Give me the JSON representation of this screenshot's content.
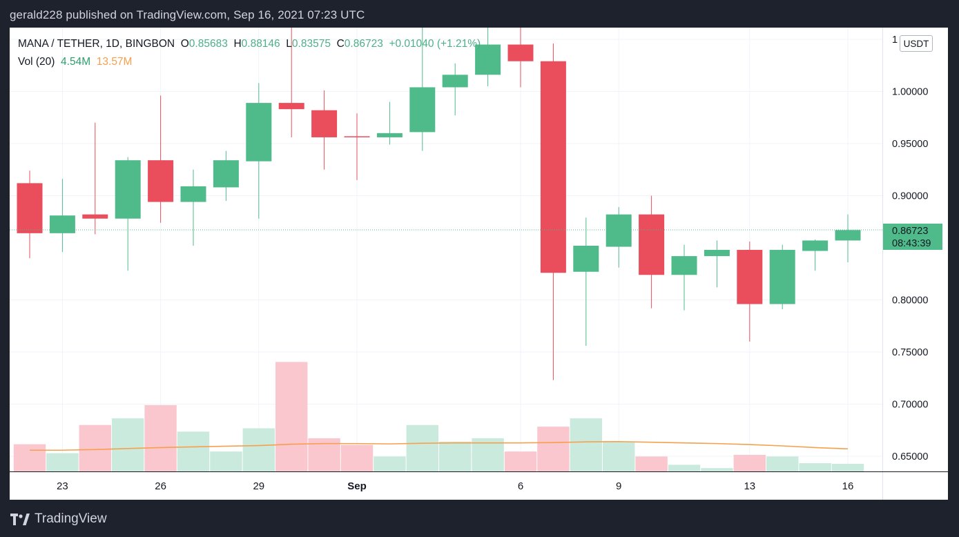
{
  "header": {
    "published_by": "gerald228 published on TradingView.com, Sep 16, 2021 07:23 UTC"
  },
  "legend": {
    "symbol": "MANA / TETHER, 1D, BINGBON",
    "o_label": "O",
    "o_value": "0.85683",
    "h_label": "H",
    "h_value": "0.88146",
    "l_label": "L",
    "l_value": "0.83575",
    "c_label": "C",
    "c_value": "0.86723",
    "change": "+0.01040 (+1.21%)",
    "vol_label": "Vol (20)",
    "vol_value": "4.54M",
    "vol_ma_value": "13.57M"
  },
  "currency_button": "USDT",
  "footer": {
    "brand": "TradingView"
  },
  "colors": {
    "up": "#4fbb8a",
    "down": "#ea4e5d",
    "vol_up": "#c9eadc",
    "vol_down": "#f9c7cd",
    "vol_ma": "#f6a04d",
    "price_line": "#4fbb8a",
    "grid": "#f0f3fa",
    "axis_text": "#131722"
  },
  "chart_data": {
    "type": "candlestick",
    "y_axis_ticks": [
      "1",
      "1.00000",
      "0.95000",
      "0.90000",
      "0.80000",
      "0.75000",
      "0.70000",
      "0.65000"
    ],
    "y_axis_tick_values": [
      1.05,
      1.0,
      0.95,
      0.9,
      0.8,
      0.75,
      0.7,
      0.65
    ],
    "ylim": [
      0.635,
      1.05
    ],
    "x_axis_labels": [
      {
        "label": "23",
        "index": 1
      },
      {
        "label": "26",
        "index": 4
      },
      {
        "label": "29",
        "index": 7
      },
      {
        "label": "Sep",
        "index": 10
      },
      {
        "label": "6",
        "index": 15
      },
      {
        "label": "9",
        "index": 18
      },
      {
        "label": "13",
        "index": 22
      },
      {
        "label": "16",
        "index": 25
      }
    ],
    "current_price_label": "0.86723",
    "countdown_label": "08:43:39",
    "current_price": 0.86723,
    "grid": true,
    "candles": [
      {
        "o": 0.912,
        "h": 0.924,
        "l": 0.84,
        "c": 0.864
      },
      {
        "o": 0.864,
        "h": 0.916,
        "l": 0.846,
        "c": 0.881
      },
      {
        "o": 0.882,
        "h": 0.97,
        "l": 0.863,
        "c": 0.878
      },
      {
        "o": 0.878,
        "h": 0.937,
        "l": 0.828,
        "c": 0.934
      },
      {
        "o": 0.934,
        "h": 0.996,
        "l": 0.874,
        "c": 0.894
      },
      {
        "o": 0.894,
        "h": 0.925,
        "l": 0.852,
        "c": 0.909
      },
      {
        "o": 0.908,
        "h": 0.943,
        "l": 0.895,
        "c": 0.934
      },
      {
        "o": 0.933,
        "h": 1.008,
        "l": 0.878,
        "c": 0.989
      },
      {
        "o": 0.989,
        "h": 1.08,
        "l": 0.956,
        "c": 0.983
      },
      {
        "o": 0.982,
        "h": 1.001,
        "l": 0.925,
        "c": 0.956
      },
      {
        "o": 0.957,
        "h": 0.979,
        "l": 0.915,
        "c": 0.956
      },
      {
        "o": 0.956,
        "h": 0.99,
        "l": 0.949,
        "c": 0.96
      },
      {
        "o": 0.961,
        "h": 1.1,
        "l": 0.943,
        "c": 1.004
      },
      {
        "o": 1.004,
        "h": 1.027,
        "l": 0.977,
        "c": 1.016
      },
      {
        "o": 1.016,
        "h": 1.09,
        "l": 1.005,
        "c": 1.045
      },
      {
        "o": 1.045,
        "h": 1.09,
        "l": 1.004,
        "c": 1.029
      },
      {
        "o": 1.029,
        "h": 1.046,
        "l": 0.723,
        "c": 0.826
      },
      {
        "o": 0.827,
        "h": 0.879,
        "l": 0.756,
        "c": 0.852
      },
      {
        "o": 0.851,
        "h": 0.889,
        "l": 0.831,
        "c": 0.882
      },
      {
        "o": 0.882,
        "h": 0.9,
        "l": 0.792,
        "c": 0.824
      },
      {
        "o": 0.824,
        "h": 0.853,
        "l": 0.79,
        "c": 0.842
      },
      {
        "o": 0.842,
        "h": 0.857,
        "l": 0.812,
        "c": 0.848
      },
      {
        "o": 0.848,
        "h": 0.856,
        "l": 0.76,
        "c": 0.796
      },
      {
        "o": 0.796,
        "h": 0.853,
        "l": 0.791,
        "c": 0.848
      },
      {
        "o": 0.847,
        "h": 0.858,
        "l": 0.828,
        "c": 0.857
      },
      {
        "o": 0.857,
        "h": 0.882,
        "l": 0.836,
        "c": 0.867
      }
    ],
    "volume_series": {
      "name": "Vol (20)",
      "values": [
        8.2,
        5.5,
        14.0,
        16.0,
        20.0,
        12.0,
        6.0,
        13.0,
        33.0,
        10.0,
        8.0,
        4.5,
        14.0,
        9.0,
        10.0,
        6.0,
        13.5,
        16.0,
        9.0,
        4.5,
        2.0,
        1.0,
        5.0,
        4.5,
        2.5,
        2.3
      ],
      "direction": [
        "down",
        "up",
        "down",
        "up",
        "down",
        "up",
        "up",
        "up",
        "down",
        "down",
        "down",
        "up",
        "up",
        "up",
        "up",
        "down",
        "down",
        "up",
        "up",
        "down",
        "up",
        "up",
        "down",
        "up",
        "up",
        "up"
      ],
      "ma": [
        6.4,
        6.4,
        6.6,
        6.9,
        7.2,
        7.4,
        7.6,
        7.8,
        8.2,
        8.4,
        8.4,
        8.3,
        8.5,
        8.6,
        8.6,
        8.6,
        8.7,
        8.9,
        9.0,
        8.8,
        8.6,
        8.4,
        8.1,
        7.7,
        7.2,
        6.8
      ],
      "ylim": [
        0,
        36
      ]
    }
  }
}
